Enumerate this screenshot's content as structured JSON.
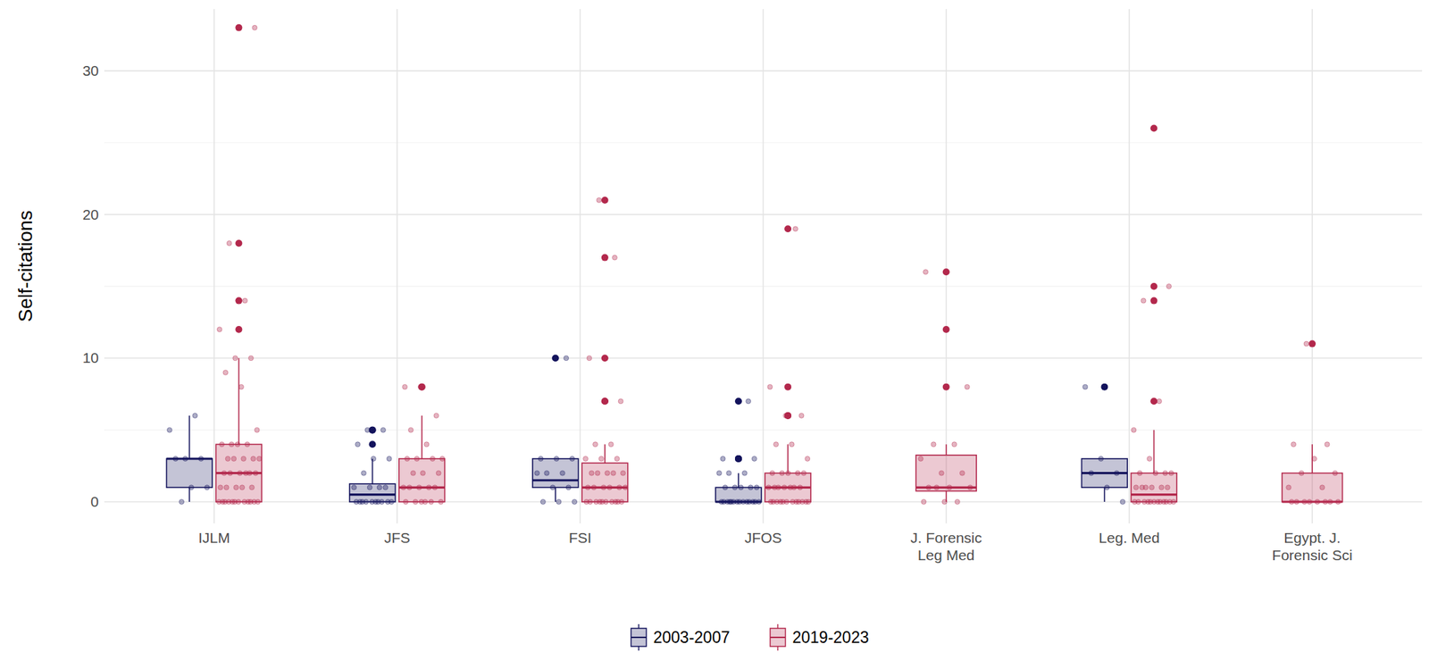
{
  "chart_data": {
    "type": "box",
    "ylabel": "Self-citations",
    "categories": [
      "IJLM",
      "JFS",
      "FSI",
      "JFOS",
      "J. Forensic\nLeg Med",
      "Leg. Med",
      "Egypt. J.\nForensic Sci"
    ],
    "ylim": [
      -1.5,
      34.3
    ],
    "yticks": [
      0,
      10,
      20,
      30
    ],
    "grid": true,
    "legend": "bottom",
    "series": [
      {
        "name": "2003-2007",
        "color": "#13135c",
        "boxes": [
          {
            "min": 0,
            "q1": 1,
            "median": 3,
            "q3": 3,
            "max": 6,
            "points": [
              0,
              1,
              1,
              3,
              3,
              3,
              5,
              6
            ]
          },
          {
            "min": 0,
            "q1": 0,
            "median": 0.5,
            "q3": 1.25,
            "max": 3,
            "points": [
              0,
              0,
              0,
              0,
              0,
              0,
              0,
              0,
              0,
              0,
              1,
              1,
              1,
              1,
              2,
              3,
              3,
              4,
              5,
              5
            ]
          },
          {
            "min": 0,
            "q1": 1,
            "median": 1.5,
            "q3": 3,
            "max": 3,
            "points": [
              0,
              0,
              0,
              1,
              1,
              2,
              2,
              2,
              3,
              3,
              3,
              10
            ]
          },
          {
            "min": 0,
            "q1": 0,
            "median": 0,
            "q3": 1,
            "max": 2,
            "points": [
              0,
              0,
              0,
              0,
              0,
              0,
              0,
              0,
              0,
              0,
              0,
              0,
              0,
              0,
              1,
              1,
              1,
              1,
              1,
              2,
              2,
              2,
              3,
              3,
              3,
              7
            ]
          },
          null,
          {
            "min": 0,
            "q1": 1,
            "median": 2,
            "q3": 3,
            "max": 3,
            "points": [
              0,
              1,
              2,
              2,
              3,
              8
            ]
          },
          null
        ]
      },
      {
        "name": "2019-2023",
        "color": "#b3284c",
        "boxes": [
          {
            "min": 0,
            "q1": 0,
            "median": 2,
            "q3": 4,
            "max": 10,
            "points": [
              0,
              0,
              0,
              0,
              0,
              0,
              0,
              0,
              0,
              0,
              0,
              0,
              1,
              1,
              1,
              1,
              1,
              2,
              2,
              2,
              2,
              2,
              2,
              3,
              3,
              3,
              3,
              3,
              4,
              4,
              4,
              4,
              5,
              8,
              9,
              10,
              10,
              12,
              14,
              18,
              33
            ]
          },
          {
            "min": 0,
            "q1": 0,
            "median": 1,
            "q3": 3,
            "max": 6,
            "points": [
              0,
              0,
              0,
              0,
              0,
              0,
              1,
              1,
              1,
              1,
              1,
              2,
              2,
              2,
              3,
              3,
              3,
              3,
              4,
              5,
              6,
              8,
              8
            ]
          },
          {
            "min": 0,
            "q1": 0,
            "median": 1,
            "q3": 2.7,
            "max": 4,
            "points": [
              0,
              0,
              0,
              0,
              0,
              0,
              0,
              0,
              0,
              0,
              1,
              1,
              1,
              1,
              1,
              1,
              2,
              2,
              2,
              2,
              2,
              3,
              3,
              3,
              4,
              4,
              7,
              7,
              10,
              17,
              21
            ]
          },
          {
            "min": 0,
            "q1": 0,
            "median": 1,
            "q3": 2,
            "max": 4,
            "points": [
              0,
              0,
              0,
              0,
              0,
              0,
              0,
              0,
              0,
              0,
              0,
              0,
              1,
              1,
              1,
              1,
              1,
              1,
              1,
              2,
              2,
              2,
              2,
              2,
              3,
              4,
              4,
              6,
              6,
              8,
              19
            ]
          },
          {
            "min": 0,
            "q1": 0.75,
            "median": 1,
            "q3": 3.25,
            "max": 4,
            "points": [
              0,
              0,
              0,
              1,
              1,
              1,
              1,
              2,
              2,
              3,
              4,
              4,
              8,
              12,
              16
            ]
          },
          {
            "min": 0,
            "q1": 0,
            "median": 0.5,
            "q3": 2,
            "max": 5,
            "points": [
              0,
              0,
              0,
              0,
              0,
              0,
              0,
              0,
              0,
              0,
              0,
              0,
              1,
              1,
              1,
              1,
              1,
              1,
              2,
              2,
              2,
              2,
              3,
              5,
              7,
              14,
              15,
              26
            ]
          },
          {
            "min": 0,
            "q1": 0,
            "median": 0,
            "q3": 2,
            "max": 4,
            "points": [
              0,
              0,
              0,
              0,
              0,
              0,
              0,
              0,
              1,
              1,
              2,
              2,
              3,
              4,
              4,
              11
            ]
          }
        ]
      }
    ]
  }
}
